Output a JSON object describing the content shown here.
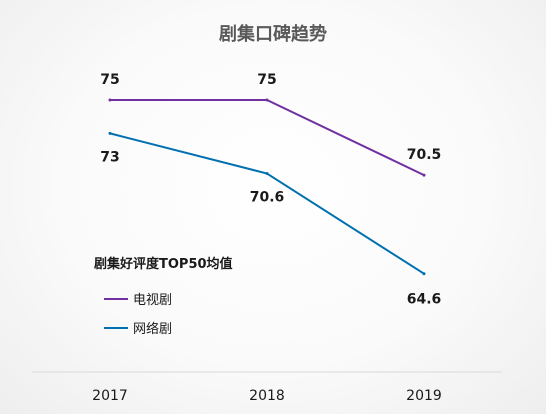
{
  "chart_data": {
    "type": "line",
    "title": "剧集口碑趋势",
    "categories": [
      "2017",
      "2018",
      "2019"
    ],
    "series": [
      {
        "name": "电视剧",
        "values": [
          75,
          75,
          70.5
        ],
        "color": "#7030a0"
      },
      {
        "name": "网络剧",
        "values": [
          73,
          70.6,
          64.6
        ],
        "color": "#0070b0"
      }
    ],
    "legend": {
      "title": "剧集好评度TOP50均值",
      "position": "left"
    },
    "data_labels": {
      "电视剧": [
        "75",
        "75",
        "70.5"
      ],
      "网络剧": [
        "73",
        "70.6",
        "64.6"
      ]
    },
    "grid": false,
    "axis_color": "#d9d9d9"
  }
}
